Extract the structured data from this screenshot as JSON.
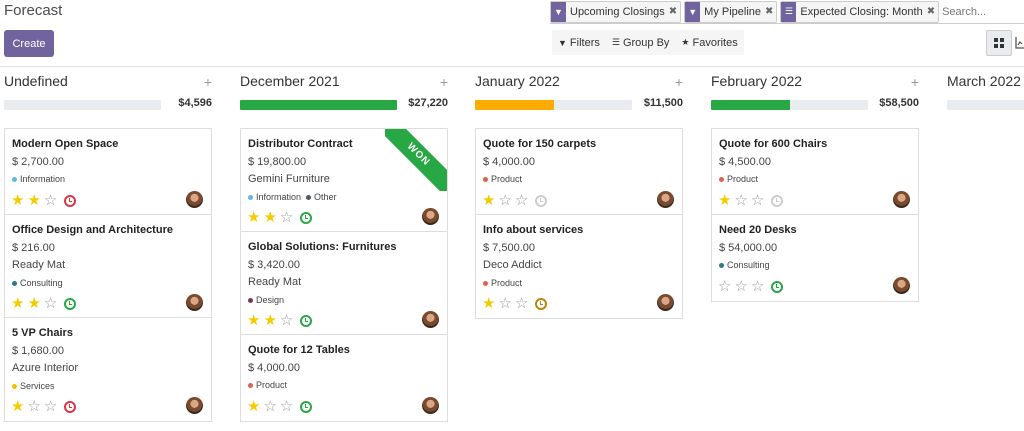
{
  "header": {
    "title": "Forecast",
    "create_label": "Create"
  },
  "search": {
    "facets": [
      {
        "icon": "filter-icon",
        "label": "Upcoming Closings"
      },
      {
        "icon": "filter-icon",
        "label": "My Pipeline"
      },
      {
        "icon": "group-by-icon",
        "label": "Expected Closing: Month"
      }
    ],
    "placeholder": "Search..."
  },
  "toolbar": {
    "filters_label": "Filters",
    "group_by_label": "Group By",
    "favorites_label": "Favorites"
  },
  "colors": {
    "accent": "#71639e",
    "green": "#28a745",
    "orange": "#f0ad4e",
    "star": "#f3cc00"
  },
  "columns": [
    {
      "title": "Undefined",
      "total": "$4,596",
      "progress": {
        "green": 0,
        "orange": 0
      },
      "cards": [
        {
          "name": "Modern Open Space",
          "amount": "$ 2,700.00",
          "partner": "",
          "tags": [
            {
              "label": "Information",
              "color": "#64b5e8"
            }
          ],
          "stars": 2,
          "activity": "red"
        },
        {
          "name": "Office Design and Architecture",
          "amount": "$ 216.00",
          "partner": "Ready Mat",
          "tags": [
            {
              "label": "Consulting",
              "color": "#2a7a8a"
            }
          ],
          "stars": 2,
          "activity": "green"
        },
        {
          "name": "5 VP Chairs",
          "amount": "$ 1,680.00",
          "partner": "Azure Interior",
          "tags": [
            {
              "label": "Services",
              "color": "#f0c000"
            }
          ],
          "stars": 1,
          "activity": "red"
        }
      ]
    },
    {
      "title": "December 2021",
      "total": "$27,220",
      "progress": {
        "green": 1.0,
        "orange": 0
      },
      "cards": [
        {
          "name": "Distributor Contract",
          "amount": "$ 19,800.00",
          "partner": "Gemini Furniture",
          "tags": [
            {
              "label": "Information",
              "color": "#64b5e8"
            },
            {
              "label": "Other",
              "color": "#4a5a6a"
            }
          ],
          "stars": 2,
          "activity": "green",
          "ribbon": "WON"
        },
        {
          "name": "Global Solutions: Furnitures",
          "amount": "$ 3,420.00",
          "partner": "Ready Mat",
          "tags": [
            {
              "label": "Design",
              "color": "#7a3a4a"
            }
          ],
          "stars": 2,
          "activity": "green"
        },
        {
          "name": "Quote for 12 Tables",
          "amount": "$ 4,000.00",
          "partner": "",
          "tags": [
            {
              "label": "Product",
              "color": "#e06050"
            }
          ],
          "stars": 1,
          "activity": "green"
        }
      ]
    },
    {
      "title": "January 2022",
      "total": "$11,500",
      "progress": {
        "green": 0,
        "orange": 0.5
      },
      "cards": [
        {
          "name": "Quote for 150 carpets",
          "amount": "$ 4,000.00",
          "partner": "",
          "tags": [
            {
              "label": "Product",
              "color": "#e06050"
            }
          ],
          "stars": 1,
          "activity": "grey"
        },
        {
          "name": "Info about services",
          "amount": "$ 7,500.00",
          "partner": "Deco Addict",
          "tags": [
            {
              "label": "Product",
              "color": "#e06050"
            }
          ],
          "stars": 1,
          "activity": "amber"
        }
      ]
    },
    {
      "title": "February 2022",
      "total": "$58,500",
      "progress": {
        "green": 0.5,
        "orange": 0
      },
      "cards": [
        {
          "name": "Quote for 600 Chairs",
          "amount": "$ 4,500.00",
          "partner": "",
          "tags": [
            {
              "label": "Product",
              "color": "#e06050"
            }
          ],
          "stars": 1,
          "activity": "grey"
        },
        {
          "name": "Need 20 Desks",
          "amount": "$ 54,000.00",
          "partner": "",
          "tags": [
            {
              "label": "Consulting",
              "color": "#2a7a8a"
            }
          ],
          "stars": 0,
          "activity": "green"
        }
      ]
    },
    {
      "title": "March 2022",
      "total": "",
      "progress": {
        "green": 0,
        "orange": 0
      },
      "cards": []
    }
  ]
}
